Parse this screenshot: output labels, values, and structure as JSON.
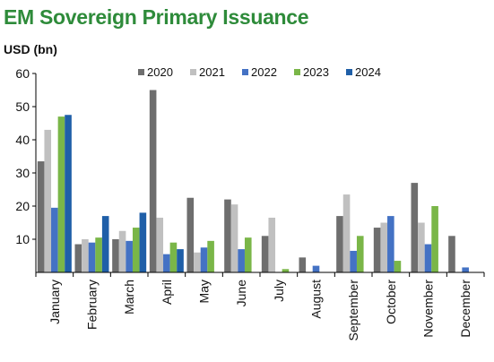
{
  "title": "EM Sovereign Primary Issuance",
  "chart_data": {
    "type": "bar",
    "ylabel": "USD (bn)",
    "ylim": [
      0,
      60
    ],
    "yticks": [
      10,
      20,
      30,
      40,
      50,
      60
    ],
    "categories": [
      "January",
      "February",
      "March",
      "April",
      "May",
      "June",
      "July",
      "August",
      "September",
      "October",
      "November",
      "December"
    ],
    "legend_position": "top",
    "series": [
      {
        "name": "2020",
        "color": "#6e6e6e",
        "values": [
          33.5,
          8.5,
          10,
          55,
          22.5,
          22,
          11,
          4.5,
          17,
          13.5,
          27,
          11
        ]
      },
      {
        "name": "2021",
        "color": "#c0c0c0",
        "values": [
          43,
          10,
          12.5,
          16.5,
          6,
          20.5,
          16.5,
          0,
          23.5,
          15,
          15,
          0
        ]
      },
      {
        "name": "2022",
        "color": "#4472c4",
        "values": [
          19.5,
          9,
          9.5,
          5.5,
          7.5,
          7,
          0,
          2,
          6.5,
          17,
          8.5,
          1.5
        ]
      },
      {
        "name": "2023",
        "color": "#7ab648",
        "values": [
          47,
          10.5,
          13.5,
          9,
          9.5,
          10.5,
          1,
          0,
          11,
          3.5,
          20,
          0
        ]
      },
      {
        "name": "2024",
        "color": "#1f5fa8",
        "values": [
          47.5,
          17,
          18,
          7,
          0,
          0,
          0,
          0,
          0,
          0,
          0,
          0
        ]
      }
    ]
  }
}
